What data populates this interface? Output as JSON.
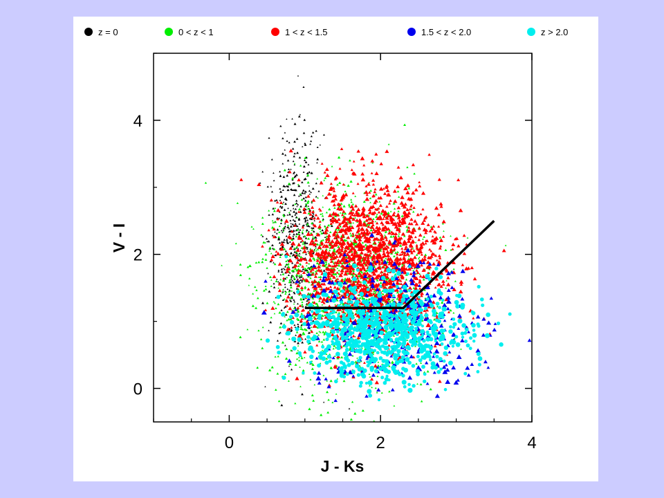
{
  "slide": {
    "background": "#ccccff",
    "panel": "#ffffff"
  },
  "chart_data": {
    "type": "scatter",
    "xlabel": "J - Ks",
    "ylabel": "V - I",
    "xlim": [
      -1,
      4
    ],
    "ylim": [
      -0.5,
      5
    ],
    "xticks": [
      "0",
      "2",
      "4"
    ],
    "yticks": [
      "0",
      "2",
      "4"
    ],
    "grid": false,
    "legend_position": "top",
    "series": [
      {
        "name": "z = 0",
        "color": "#000000",
        "approx_count": 520
      },
      {
        "name": "0 < z < 1",
        "color": "#00ee00",
        "approx_count": 1500
      },
      {
        "name": "1 < z < 1.5",
        "color": "#ff0000",
        "approx_count": 1800
      },
      {
        "name": "1.5 < z < 2.0",
        "color": "#0000ee",
        "approx_count": 380
      },
      {
        "name": "z > 2.0",
        "color": "#00eeee",
        "approx_count": 800
      }
    ],
    "cut_line": {
      "color": "#000000",
      "points": [
        [
          1.0,
          1.2
        ],
        [
          2.3,
          1.2
        ],
        [
          3.5,
          2.5
        ]
      ]
    }
  }
}
